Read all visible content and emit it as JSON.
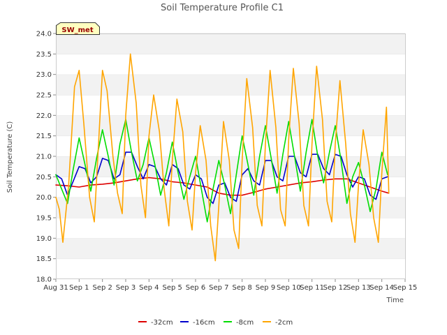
{
  "chart_data": {
    "type": "line",
    "title": "Soil Temperature Profile C1",
    "xlabel": "Time",
    "ylabel": "Soil Temperature (C)",
    "badge": "SW_met",
    "ylim": [
      18.0,
      24.0
    ],
    "xlim": [
      0,
      15
    ],
    "x_unit": "days since Aug 31",
    "yticks": [
      18.0,
      18.5,
      19.0,
      19.5,
      20.0,
      20.5,
      21.0,
      21.5,
      22.0,
      22.5,
      23.0,
      23.5,
      24.0
    ],
    "xtick_labels": [
      "Aug 31",
      "Sep 1",
      "Sep 2",
      "Sep 3",
      "Sep 4",
      "Sep 5",
      "Sep 6",
      "Sep 7",
      "Sep 8",
      "Sep 9",
      "Sep 10",
      "Sep 11",
      "Sep 12",
      "Sep 13",
      "Sep 14",
      "Sep 15"
    ],
    "grid": "horizontal bands",
    "legend_position": "bottom",
    "series": [
      {
        "name": "-32cm",
        "color": "#dd0000",
        "x": [
          0.0,
          0.5,
          1.0,
          1.5,
          2.0,
          2.5,
          3.0,
          3.5,
          4.0,
          4.5,
          5.0,
          5.5,
          6.0,
          6.5,
          7.0,
          7.5,
          8.0,
          8.5,
          9.0,
          9.5,
          10.0,
          10.5,
          11.0,
          11.5,
          12.0,
          12.5,
          13.0,
          13.5,
          14.0,
          14.3
        ],
        "y": [
          20.3,
          20.28,
          20.25,
          20.3,
          20.32,
          20.35,
          20.4,
          20.45,
          20.48,
          20.45,
          20.38,
          20.35,
          20.3,
          20.25,
          20.1,
          20.05,
          20.05,
          20.12,
          20.2,
          20.25,
          20.3,
          20.35,
          20.38,
          20.42,
          20.45,
          20.45,
          20.35,
          20.25,
          20.15,
          20.1
        ]
      },
      {
        "name": "-16cm",
        "color": "#0000cc",
        "x": [
          0.0,
          0.25,
          0.5,
          0.75,
          1.0,
          1.25,
          1.5,
          1.75,
          2.0,
          2.25,
          2.5,
          2.75,
          3.0,
          3.25,
          3.5,
          3.75,
          4.0,
          4.25,
          4.5,
          4.75,
          5.0,
          5.25,
          5.5,
          5.75,
          6.0,
          6.25,
          6.5,
          6.75,
          7.0,
          7.25,
          7.5,
          7.75,
          8.0,
          8.25,
          8.5,
          8.75,
          9.0,
          9.25,
          9.5,
          9.75,
          10.0,
          10.25,
          10.5,
          10.75,
          11.0,
          11.25,
          11.5,
          11.75,
          12.0,
          12.25,
          12.5,
          12.75,
          13.0,
          13.25,
          13.5,
          13.75,
          14.0,
          14.25
        ],
        "y": [
          20.55,
          20.45,
          20.05,
          20.4,
          20.75,
          20.7,
          20.35,
          20.5,
          20.95,
          20.9,
          20.45,
          20.55,
          21.1,
          21.1,
          20.75,
          20.45,
          20.8,
          20.75,
          20.45,
          20.3,
          20.8,
          20.7,
          20.3,
          20.2,
          20.55,
          20.45,
          20.0,
          19.85,
          20.3,
          20.35,
          20.0,
          19.9,
          20.55,
          20.7,
          20.4,
          20.3,
          20.9,
          20.9,
          20.5,
          20.4,
          21.0,
          21.0,
          20.6,
          20.5,
          21.05,
          21.05,
          20.7,
          20.55,
          21.05,
          21.0,
          20.55,
          20.25,
          20.5,
          20.45,
          20.05,
          19.95,
          20.45,
          20.5
        ]
      },
      {
        "name": "-8cm",
        "color": "#00dd00",
        "x": [
          0.0,
          0.25,
          0.5,
          0.75,
          1.0,
          1.25,
          1.5,
          1.75,
          2.0,
          2.25,
          2.5,
          2.75,
          3.0,
          3.25,
          3.5,
          3.75,
          4.0,
          4.25,
          4.5,
          4.75,
          5.0,
          5.25,
          5.5,
          5.75,
          6.0,
          6.25,
          6.5,
          6.75,
          7.0,
          7.25,
          7.5,
          7.75,
          8.0,
          8.25,
          8.5,
          8.75,
          9.0,
          9.25,
          9.5,
          9.75,
          10.0,
          10.25,
          10.5,
          10.75,
          11.0,
          11.25,
          11.5,
          11.75,
          12.0,
          12.25,
          12.5,
          12.75,
          13.0,
          13.25,
          13.5,
          13.75,
          14.0,
          14.25
        ],
        "y": [
          20.55,
          20.2,
          19.85,
          20.7,
          21.45,
          20.8,
          20.15,
          20.95,
          21.65,
          21.0,
          20.3,
          21.3,
          21.9,
          21.1,
          20.4,
          20.8,
          21.45,
          20.8,
          20.05,
          20.6,
          21.35,
          20.6,
          19.95,
          20.5,
          21.0,
          20.2,
          19.4,
          20.2,
          20.9,
          20.3,
          19.6,
          20.55,
          21.5,
          20.8,
          20.05,
          21.0,
          21.75,
          20.95,
          20.1,
          21.05,
          21.85,
          21.0,
          20.15,
          21.1,
          21.9,
          21.0,
          20.35,
          21.1,
          21.75,
          20.9,
          19.85,
          20.5,
          20.85,
          20.3,
          19.65,
          20.2,
          21.1,
          20.55
        ]
      },
      {
        "name": "-2cm",
        "color": "#ffa500",
        "x": [
          0.0,
          0.15,
          0.3,
          0.55,
          0.8,
          1.0,
          1.2,
          1.45,
          1.65,
          1.85,
          2.0,
          2.2,
          2.45,
          2.65,
          2.85,
          3.0,
          3.2,
          3.45,
          3.65,
          3.85,
          4.0,
          4.2,
          4.45,
          4.65,
          4.85,
          5.0,
          5.2,
          5.45,
          5.65,
          5.85,
          6.0,
          6.2,
          6.45,
          6.65,
          6.85,
          7.0,
          7.2,
          7.45,
          7.65,
          7.85,
          8.0,
          8.2,
          8.45,
          8.65,
          8.85,
          9.0,
          9.2,
          9.45,
          9.65,
          9.85,
          10.0,
          10.2,
          10.45,
          10.65,
          10.85,
          11.0,
          11.2,
          11.45,
          11.65,
          11.85,
          12.0,
          12.2,
          12.45,
          12.65,
          12.85,
          13.0,
          13.2,
          13.45,
          13.65,
          13.85,
          14.0,
          14.2,
          14.3
        ],
        "y": [
          20.0,
          19.7,
          18.9,
          20.3,
          22.7,
          23.1,
          21.8,
          20.0,
          19.4,
          21.5,
          23.1,
          22.6,
          21.0,
          20.1,
          19.6,
          22.0,
          23.5,
          22.3,
          20.3,
          19.5,
          21.5,
          22.5,
          21.6,
          20.2,
          19.3,
          20.9,
          22.4,
          21.6,
          19.9,
          19.2,
          20.6,
          21.75,
          20.9,
          19.3,
          18.45,
          19.8,
          21.85,
          20.9,
          19.2,
          18.75,
          20.9,
          22.9,
          21.7,
          19.8,
          19.3,
          21.3,
          23.1,
          21.7,
          19.7,
          19.3,
          21.4,
          23.15,
          21.8,
          19.8,
          19.3,
          21.3,
          23.2,
          21.9,
          19.9,
          19.4,
          21.3,
          22.85,
          21.3,
          19.6,
          18.9,
          20.3,
          21.65,
          20.8,
          19.5,
          18.9,
          20.6,
          22.2,
          20.1
        ]
      }
    ]
  }
}
